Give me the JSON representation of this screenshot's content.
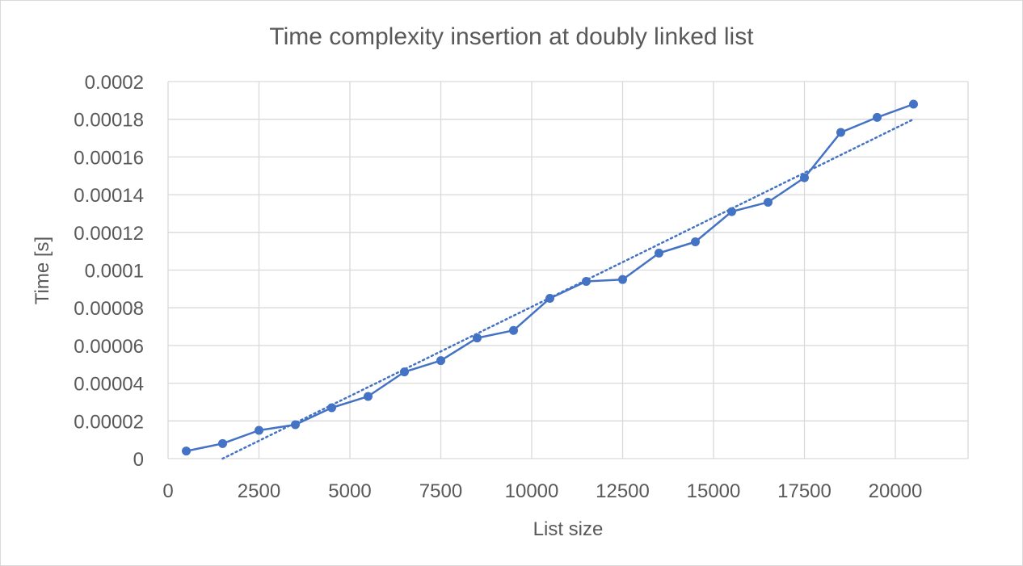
{
  "chart_data": {
    "type": "scatter",
    "title": "Time complexity insertion at doubly linked list",
    "xlabel": "List size",
    "ylabel": "Time [s]",
    "xlim": [
      0,
      22000
    ],
    "ylim": [
      0,
      0.0002
    ],
    "x_ticks": [
      0,
      2500,
      5000,
      7500,
      10000,
      12500,
      15000,
      17500,
      20000
    ],
    "x_tick_labels": [
      "0",
      "2500",
      "5000",
      "7500",
      "10000",
      "12500",
      "15000",
      "17500",
      "20000"
    ],
    "y_ticks": [
      0,
      2e-05,
      4e-05,
      6e-05,
      8e-05,
      0.0001,
      0.00012,
      0.00014,
      0.00016,
      0.00018,
      0.0002
    ],
    "y_tick_labels": [
      "0",
      "0.00002",
      "0.00004",
      "0.00006",
      "0.00008",
      "0.0001",
      "0.00012",
      "0.00014",
      "0.00016",
      "0.00018",
      "0.0002"
    ],
    "grid": true,
    "series": [
      {
        "x": [
          500,
          1500,
          2500,
          3500,
          4500,
          5500,
          6500,
          7500,
          8500,
          9500,
          10500,
          11500,
          12500,
          13500,
          14500,
          15500,
          16500,
          17500,
          18500,
          19500,
          20500
        ],
        "y": [
          4e-06,
          8e-06,
          1.5e-05,
          1.8e-05,
          2.7e-05,
          3.3e-05,
          4.6e-05,
          5.2e-05,
          6.4e-05,
          6.8e-05,
          8.5e-05,
          9.4e-05,
          9.5e-05,
          0.000109,
          0.000115,
          0.000131,
          0.000136,
          0.000149,
          0.000173,
          0.000181,
          0.000188
        ],
        "color": "#4472c4",
        "mode": "lines+markers"
      }
    ],
    "trendline": {
      "type": "linear",
      "x": [
        1500,
        20500
      ],
      "y": [
        0,
        0.00018
      ],
      "color": "#4472c4",
      "style": "dotted"
    }
  }
}
